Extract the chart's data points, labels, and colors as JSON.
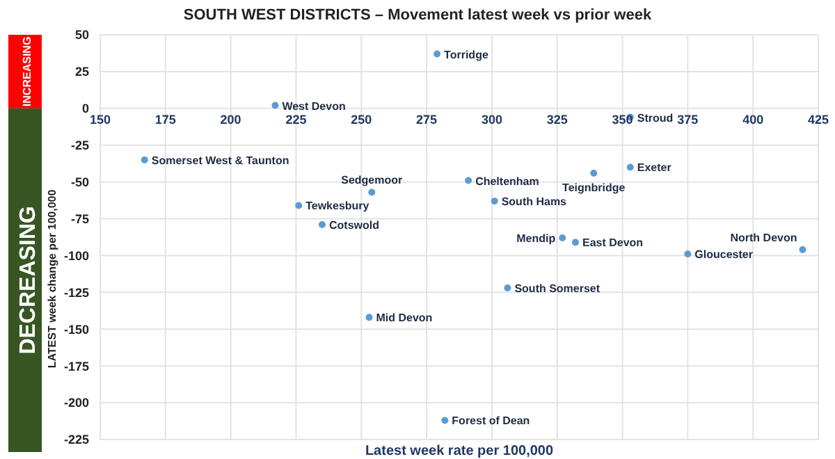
{
  "chart_data": {
    "type": "scatter",
    "title": "SOUTH WEST DISTRICTS – Movement latest week vs prior week",
    "xlabel": "Latest week rate per 100,000",
    "ylabel": "LATEST week change per 100,000",
    "x": [
      217,
      279,
      353,
      167,
      226,
      235,
      254,
      291,
      301,
      339,
      353,
      327,
      332,
      375,
      419,
      306,
      253,
      282
    ],
    "values": [
      2,
      37,
      -6,
      -35,
      -66,
      -79,
      -57,
      -49,
      -63,
      -44,
      -40,
      -88,
      -91,
      -99,
      -96,
      -122,
      -142,
      -212
    ],
    "color": "#5b9bd5",
    "marker": "circle",
    "grid": true,
    "xlim": [
      150,
      425
    ],
    "xticks": [
      150,
      175,
      200,
      225,
      250,
      275,
      300,
      325,
      350,
      375,
      400,
      425
    ],
    "ylim": [
      -225,
      50
    ],
    "yticks": [
      -225,
      -200,
      -175,
      -150,
      -125,
      -100,
      -75,
      -50,
      -25,
      0,
      25,
      50
    ],
    "annotations": [
      {
        "text": "West Devon",
        "x": 217,
        "y": 2
      },
      {
        "text": "Torridge",
        "x": 279,
        "y": 37
      },
      {
        "text": "Stroud",
        "x": 353,
        "y": -6
      },
      {
        "text": "Somerset West & Taunton",
        "x": 167,
        "y": -35
      },
      {
        "text": "Tewkesbury",
        "x": 226,
        "y": -66
      },
      {
        "text": "Cotswold",
        "x": 235,
        "y": -79
      },
      {
        "text": "Sedgemoor",
        "x": 254,
        "y": -57
      },
      {
        "text": "Cheltenham",
        "x": 291,
        "y": -49
      },
      {
        "text": "South Hams",
        "x": 301,
        "y": -63
      },
      {
        "text": "Teignbridge",
        "x": 339,
        "y": -44
      },
      {
        "text": "Exeter",
        "x": 353,
        "y": -40
      },
      {
        "text": "Mendip",
        "x": 327,
        "y": -88
      },
      {
        "text": "East Devon",
        "x": 332,
        "y": -91
      },
      {
        "text": "Gloucester",
        "x": 375,
        "y": -99
      },
      {
        "text": "North Devon",
        "x": 419,
        "y": -96
      },
      {
        "text": "South Somerset",
        "x": 306,
        "y": -122
      },
      {
        "text": "Mid Devon",
        "x": 253,
        "y": -142
      },
      {
        "text": "Forest of Dean",
        "x": 282,
        "y": -212
      },
      "INCREASING",
      "DECREASING"
    ]
  }
}
